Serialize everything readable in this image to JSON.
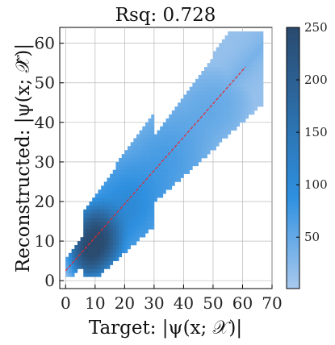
{
  "chart_data": {
    "type": "heatmap",
    "title": "Rsq: 0.728",
    "xlabel": "Target: |ψ(x; 𝒳)|",
    "ylabel": "Reconstructed: |ψ(x; 𝒳̂)|",
    "xlim": [
      -2,
      70
    ],
    "ylim": [
      -2,
      64
    ],
    "xticks": [
      0,
      10,
      20,
      30,
      40,
      50,
      60,
      70
    ],
    "yticks": [
      0,
      10,
      20,
      30,
      40,
      50,
      60
    ],
    "grid": true,
    "fit_line": {
      "x": [
        0,
        61
      ],
      "y": [
        2.5,
        54
      ],
      "color": "#e8262b",
      "style": "dashed"
    },
    "density_clusters": [
      {
        "center": [
          10,
          10
        ],
        "spread": [
          4,
          4
        ],
        "weight": 250
      },
      {
        "center": [
          7,
          6
        ],
        "spread": [
          3,
          3
        ],
        "weight": 120
      },
      {
        "center": [
          20,
          18
        ],
        "spread": [
          8,
          7
        ],
        "weight": 25
      },
      {
        "center": [
          34,
          30
        ],
        "spread": [
          9,
          8
        ],
        "weight": 10
      },
      {
        "center": [
          50,
          44
        ],
        "spread": [
          9,
          7
        ],
        "weight": 5
      }
    ],
    "colorbar": {
      "min": 1,
      "max": 250,
      "ticks": [
        50,
        100,
        150,
        200,
        250
      ],
      "colors": [
        "#a9c9ee",
        "#2e90e0",
        "#2a4a6e"
      ]
    }
  }
}
